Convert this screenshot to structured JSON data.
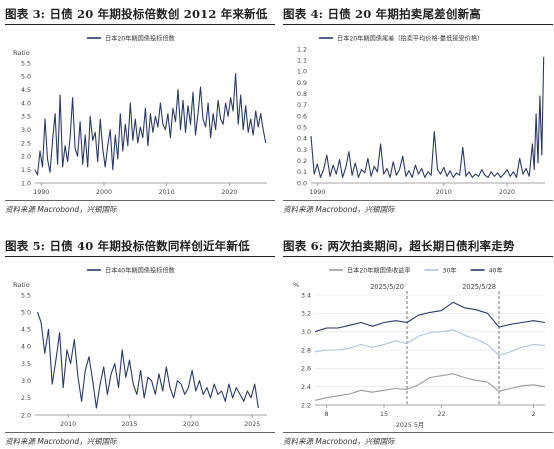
{
  "panels": [
    {
      "title": "图表 3: 日债 20 年期投标倍数创 2012 年来新低",
      "source": "资料来源 Macrobond，兴银国际",
      "chart_data": {
        "type": "line",
        "ylabel": "Ratio",
        "ylim": [
          1.0,
          5.5
        ],
        "yticks": [
          1.0,
          1.5,
          2.0,
          2.5,
          3.0,
          3.5,
          4.0,
          4.5,
          5.0,
          5.5
        ],
        "xlim": [
          1989,
          2026
        ],
        "xticks": [
          1990,
          2000,
          2010,
          2020
        ],
        "series": [
          {
            "name": "日本20年期国债投标倍数",
            "color": "#2b3a67",
            "x": [
              1989.0,
              1989.4,
              1989.8,
              1990.2,
              1990.6,
              1991.0,
              1991.4,
              1991.8,
              1992.2,
              1992.6,
              1993.0,
              1993.4,
              1993.8,
              1994.2,
              1994.6,
              1995.0,
              1995.4,
              1995.8,
              1996.2,
              1996.6,
              1997.0,
              1997.4,
              1997.8,
              1998.2,
              1998.6,
              1999.0,
              1999.4,
              1999.8,
              2000.2,
              2000.6,
              2001.0,
              2001.4,
              2001.8,
              2002.2,
              2002.6,
              2003.0,
              2003.4,
              2003.8,
              2004.2,
              2004.6,
              2005.0,
              2005.4,
              2005.8,
              2006.2,
              2006.6,
              2007.0,
              2007.4,
              2007.8,
              2008.2,
              2008.6,
              2009.0,
              2009.4,
              2009.8,
              2010.2,
              2010.6,
              2011.0,
              2011.4,
              2011.8,
              2012.2,
              2012.6,
              2013.0,
              2013.4,
              2013.8,
              2014.2,
              2014.6,
              2015.0,
              2015.4,
              2015.8,
              2016.2,
              2016.6,
              2017.0,
              2017.4,
              2017.8,
              2018.2,
              2018.6,
              2019.0,
              2019.4,
              2019.8,
              2020.2,
              2020.6,
              2021.0,
              2021.4,
              2021.8,
              2022.2,
              2022.6,
              2023.0,
              2023.4,
              2023.8,
              2024.2,
              2024.6,
              2025.0,
              2025.4,
              2025.8
            ],
            "y": [
              1.5,
              1.3,
              2.2,
              1.6,
              3.4,
              1.9,
              1.4,
              2.6,
              3.6,
              1.7,
              4.3,
              1.6,
              2.4,
              1.8,
              2.7,
              4.2,
              2.3,
              2.0,
              3.3,
              1.7,
              2.8,
              1.6,
              3.5,
              2.6,
              2.9,
              1.8,
              3.4,
              2.3,
              1.6,
              2.4,
              3.0,
              1.5,
              2.8,
              1.9,
              3.6,
              2.2,
              3.2,
              2.4,
              4.0,
              2.6,
              3.4,
              2.5,
              3.1,
              2.7,
              3.8,
              2.4,
              3.6,
              2.9,
              3.5,
              3.1,
              4.0,
              3.2,
              3.0,
              3.6,
              2.7,
              3.8,
              3.3,
              4.5,
              3.0,
              4.1,
              2.9,
              3.9,
              3.2,
              4.4,
              2.8,
              3.6,
              4.6,
              3.4,
              3.1,
              4.0,
              2.7,
              3.6,
              3.0,
              4.1,
              3.4,
              3.2,
              4.0,
              3.5,
              4.2,
              3.7,
              5.1,
              3.2,
              4.3,
              3.0,
              3.9,
              2.9,
              3.4,
              2.8,
              3.7,
              3.1,
              3.6,
              3.0,
              2.5
            ]
          }
        ]
      }
    },
    {
      "title": "图表 4: 日债 20 年期拍卖尾差创新高",
      "source": "资料来源 Macrobond，兴银国际",
      "chart_data": {
        "type": "line",
        "ylabel": "",
        "ylim": [
          0.0,
          1.2
        ],
        "yticks": [
          0.0,
          0.1,
          0.2,
          0.3,
          0.4,
          0.5,
          0.6,
          0.7,
          0.8,
          0.9,
          1.0,
          1.1,
          1.2
        ],
        "xlim": [
          1989,
          2026
        ],
        "xticks": [
          1990,
          2010,
          2020
        ],
        "series": [
          {
            "name": "日本20年期国债尾差（拍卖平均价格-最低接受价格）",
            "color": "#2b3a67",
            "x": [
              1989.0,
              1989.5,
              1990.0,
              1990.5,
              1991.0,
              1991.5,
              1992.0,
              1992.5,
              1993.0,
              1993.5,
              1994.0,
              1994.5,
              1995.0,
              1995.5,
              1996.0,
              1996.5,
              1997.0,
              1997.5,
              1998.0,
              1998.5,
              1999.0,
              1999.5,
              2000.0,
              2000.5,
              2001.0,
              2001.5,
              2002.0,
              2002.5,
              2003.0,
              2003.5,
              2004.0,
              2004.5,
              2005.0,
              2005.5,
              2006.0,
              2006.5,
              2007.0,
              2007.5,
              2008.0,
              2008.5,
              2009.0,
              2009.5,
              2010.0,
              2010.5,
              2011.0,
              2011.5,
              2012.0,
              2012.5,
              2013.0,
              2013.5,
              2014.0,
              2014.5,
              2015.0,
              2015.5,
              2016.0,
              2016.5,
              2017.0,
              2017.5,
              2018.0,
              2018.5,
              2019.0,
              2019.5,
              2020.0,
              2020.5,
              2021.0,
              2021.5,
              2022.0,
              2022.5,
              2023.0,
              2023.5,
              2024.0,
              2024.3,
              2024.6,
              2024.9,
              2025.2,
              2025.5,
              2025.8
            ],
            "y": [
              0.42,
              0.08,
              0.17,
              0.05,
              0.12,
              0.25,
              0.06,
              0.16,
              0.08,
              0.21,
              0.05,
              0.14,
              0.28,
              0.07,
              0.18,
              0.05,
              0.12,
              0.09,
              0.22,
              0.06,
              0.15,
              0.1,
              0.35,
              0.08,
              0.13,
              0.05,
              0.19,
              0.07,
              0.12,
              0.24,
              0.06,
              0.11,
              0.05,
              0.16,
              0.08,
              0.13,
              0.05,
              0.1,
              0.07,
              0.46,
              0.12,
              0.08,
              0.14,
              0.06,
              0.11,
              0.05,
              0.09,
              0.07,
              0.32,
              0.06,
              0.1,
              0.05,
              0.08,
              0.06,
              0.12,
              0.07,
              0.05,
              0.1,
              0.06,
              0.09,
              0.05,
              0.08,
              0.12,
              0.06,
              0.1,
              0.05,
              0.22,
              0.08,
              0.13,
              0.06,
              0.35,
              0.12,
              0.62,
              0.18,
              0.78,
              0.25,
              1.13
            ]
          }
        ]
      }
    },
    {
      "title": "图表 5: 日债 40 年期投标倍数同样创近年新低",
      "source": "资料来源 Macrobond，兴银国际",
      "chart_data": {
        "type": "line",
        "ylabel": "Ratio",
        "ylim": [
          2.0,
          5.5
        ],
        "yticks": [
          2.0,
          2.5,
          3.0,
          3.5,
          4.0,
          4.5,
          5.0,
          5.5
        ],
        "xlim": [
          2007.3,
          2026.2
        ],
        "xticks": [
          2010,
          2015,
          2020,
          2025
        ],
        "series": [
          {
            "name": "日本40年期国债投标倍数",
            "color": "#2b3a67",
            "x": [
              2007.5,
              2007.8,
              2008.1,
              2008.4,
              2008.7,
              2009.0,
              2009.3,
              2009.6,
              2009.9,
              2010.2,
              2010.5,
              2010.8,
              2011.1,
              2011.4,
              2011.7,
              2012.0,
              2012.3,
              2012.6,
              2012.9,
              2013.2,
              2013.5,
              2013.8,
              2014.1,
              2014.4,
              2014.7,
              2015.0,
              2015.3,
              2015.6,
              2015.9,
              2016.2,
              2016.5,
              2016.8,
              2017.1,
              2017.4,
              2017.7,
              2018.0,
              2018.3,
              2018.6,
              2018.9,
              2019.2,
              2019.5,
              2019.8,
              2020.1,
              2020.4,
              2020.7,
              2021.0,
              2021.3,
              2021.6,
              2021.9,
              2022.2,
              2022.5,
              2022.8,
              2023.1,
              2023.4,
              2023.7,
              2024.0,
              2024.3,
              2024.6,
              2024.9,
              2025.2,
              2025.5
            ],
            "y": [
              5.0,
              4.7,
              3.8,
              4.5,
              2.9,
              3.6,
              4.4,
              2.8,
              3.9,
              3.5,
              4.2,
              3.1,
              2.4,
              3.3,
              3.7,
              3.0,
              2.2,
              2.9,
              3.4,
              2.6,
              3.2,
              3.5,
              2.8,
              3.9,
              3.1,
              3.6,
              2.9,
              2.6,
              3.3,
              2.5,
              3.1,
              3.0,
              2.6,
              3.2,
              2.7,
              3.4,
              2.8,
              2.5,
              3.0,
              2.9,
              2.6,
              2.8,
              3.3,
              2.7,
              3.0,
              2.6,
              2.8,
              2.5,
              2.9,
              2.6,
              2.7,
              2.4,
              2.9,
              2.5,
              2.8,
              2.6,
              2.4,
              2.7,
              2.5,
              2.9,
              2.2
            ]
          }
        ]
      }
    },
    {
      "title": "图表 6: 两次拍卖期间，超长期日债利率走势",
      "source": "资料来源 Macrobond，兴银国际",
      "chart_data": {
        "type": "line",
        "ylabel": "%",
        "ylim": [
          2.2,
          3.4
        ],
        "yticks": [
          2.2,
          2.4,
          2.6,
          2.8,
          3.0,
          3.2,
          3.4
        ],
        "xlim": [
          0,
          20
        ],
        "xticks": [
          {
            "x": 1,
            "label": "8"
          },
          {
            "x": 6,
            "label": "15"
          },
          {
            "x": 11,
            "label": "22"
          },
          {
            "x": 19,
            "label": "2"
          }
        ],
        "xlabel": "2025 5月",
        "annotations": [
          {
            "x": 8,
            "label": "2025/5/20"
          },
          {
            "x": 16,
            "label": "2025/5/28"
          }
        ],
        "series": [
          {
            "name": "日本20年期国债收益率",
            "color": "#9a9a9a",
            "x": [
              0,
              1,
              2,
              3,
              4,
              5,
              6,
              7,
              8,
              9,
              10,
              11,
              12,
              13,
              14,
              15,
              16,
              17,
              18,
              19,
              20
            ],
            "y": [
              2.25,
              2.28,
              2.3,
              2.32,
              2.36,
              2.34,
              2.36,
              2.38,
              2.37,
              2.42,
              2.5,
              2.52,
              2.54,
              2.5,
              2.47,
              2.45,
              2.35,
              2.38,
              2.41,
              2.42,
              2.4
            ]
          },
          {
            "name": "30年",
            "color": "#aec3d8",
            "x": [
              0,
              1,
              2,
              3,
              4,
              5,
              6,
              7,
              8,
              9,
              10,
              11,
              12,
              13,
              14,
              15,
              16,
              17,
              18,
              19,
              20
            ],
            "y": [
              2.78,
              2.8,
              2.8,
              2.82,
              2.86,
              2.83,
              2.86,
              2.9,
              2.87,
              2.95,
              2.99,
              3.0,
              3.02,
              2.96,
              2.92,
              2.86,
              2.74,
              2.78,
              2.83,
              2.86,
              2.85
            ]
          },
          {
            "name": "40年",
            "color": "#2b3a67",
            "x": [
              0,
              1,
              2,
              3,
              4,
              5,
              6,
              7,
              8,
              9,
              10,
              11,
              12,
              13,
              14,
              15,
              16,
              17,
              18,
              19,
              20
            ],
            "y": [
              3.0,
              3.04,
              3.04,
              3.07,
              3.1,
              3.06,
              3.1,
              3.12,
              3.1,
              3.18,
              3.21,
              3.23,
              3.32,
              3.26,
              3.24,
              3.2,
              3.05,
              3.08,
              3.1,
              3.12,
              3.1
            ]
          }
        ]
      }
    }
  ]
}
